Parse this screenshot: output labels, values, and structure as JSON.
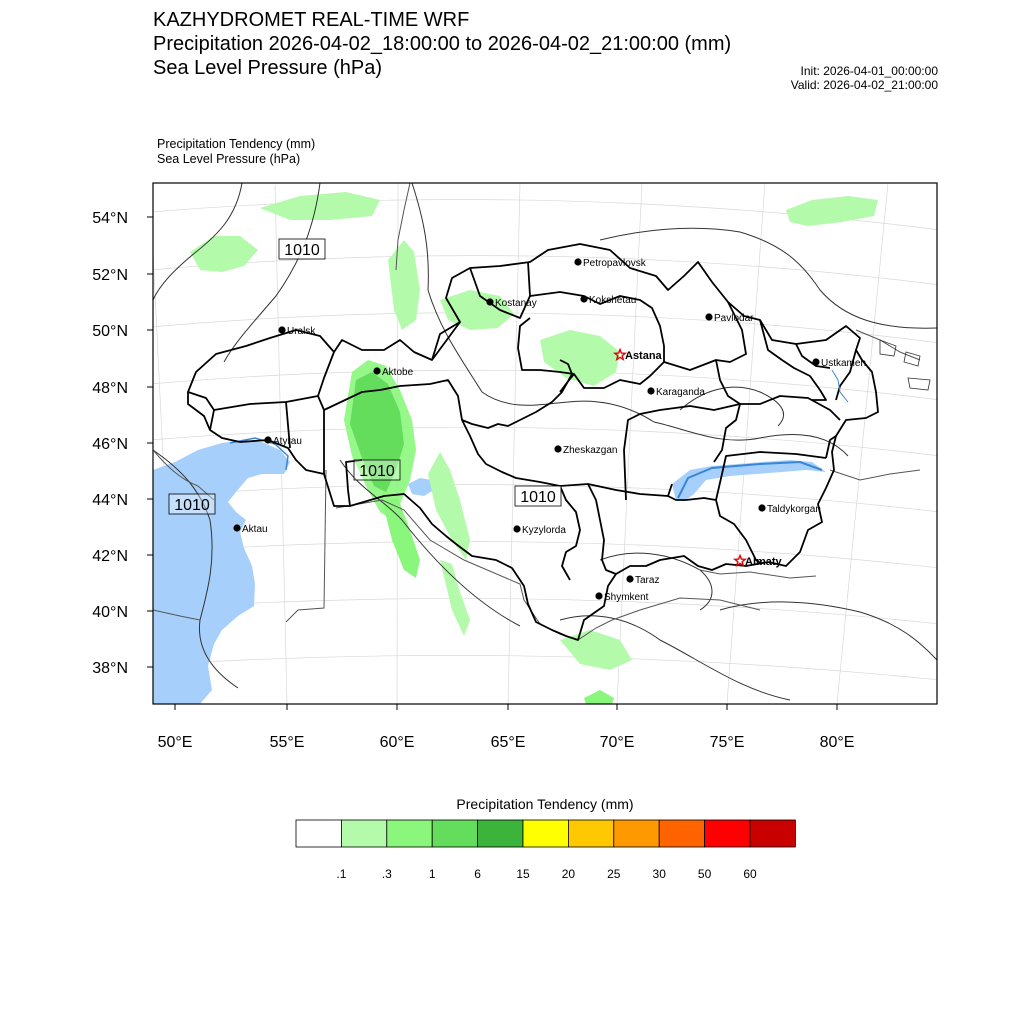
{
  "header": {
    "title": "KAZHYDROMET REAL-TIME WRF",
    "subtitle_precip": "Precipitation 2026-04-02_18:00:00 to 2026-04-02_21:00:00 (mm)",
    "subtitle_slp": "Sea Level Pressure  (hPa)",
    "init": "Init: 2026-04-01_00:00:00",
    "valid": "Valid: 2026-04-02_21:00:00"
  },
  "fields": {
    "precip_label": "Precipitation Tendency   (mm)",
    "slp_label": "Sea Level Pressure   (hPa)"
  },
  "map": {
    "lat_ticks": [
      "54°N",
      "52°N",
      "50°N",
      "48°N",
      "46°N",
      "44°N",
      "42°N",
      "40°N",
      "38°N"
    ],
    "lon_ticks": [
      "50°E",
      "55°E",
      "60°E",
      "65°E",
      "70°E",
      "75°E",
      "80°E"
    ],
    "isobar_labels": [
      "1010",
      "1010",
      "1010",
      "1010"
    ],
    "cities": [
      {
        "name": "Petropavlovsk",
        "capital": false
      },
      {
        "name": "Kostanay",
        "capital": false
      },
      {
        "name": "Kokshetau",
        "capital": false
      },
      {
        "name": "Pavlodar",
        "capital": false
      },
      {
        "name": "Uralsk",
        "capital": false
      },
      {
        "name": "Astana",
        "capital": true
      },
      {
        "name": "Ustkamen",
        "capital": false
      },
      {
        "name": "Aktobe",
        "capital": false
      },
      {
        "name": "Karaganda",
        "capital": false
      },
      {
        "name": "Atyrau",
        "capital": false
      },
      {
        "name": "Zheskazgan",
        "capital": false
      },
      {
        "name": "Aktau",
        "capital": false
      },
      {
        "name": "Kyzylorda",
        "capital": false
      },
      {
        "name": "Taldykorgan",
        "capital": false
      },
      {
        "name": "Almaty",
        "capital": true
      },
      {
        "name": "Taraz",
        "capital": false
      },
      {
        "name": "Shymkent",
        "capital": false
      }
    ],
    "colors": {
      "water": "#a6d0fb",
      "coast_water": "#3a86d6",
      "border": "#000000",
      "isobar": "#333333"
    }
  },
  "colorbar": {
    "title": "Precipitation Tendency (mm)",
    "colors": [
      "#ffffff",
      "#b4faab",
      "#8af77c",
      "#64dc5c",
      "#3cb43c",
      "#ffff00",
      "#ffc800",
      "#ff9900",
      "#ff6400",
      "#ff0000",
      "#c80000"
    ],
    "labels": [
      ".1",
      ".3",
      "1",
      "6",
      "15",
      "20",
      "25",
      "30",
      "50",
      "60"
    ]
  }
}
